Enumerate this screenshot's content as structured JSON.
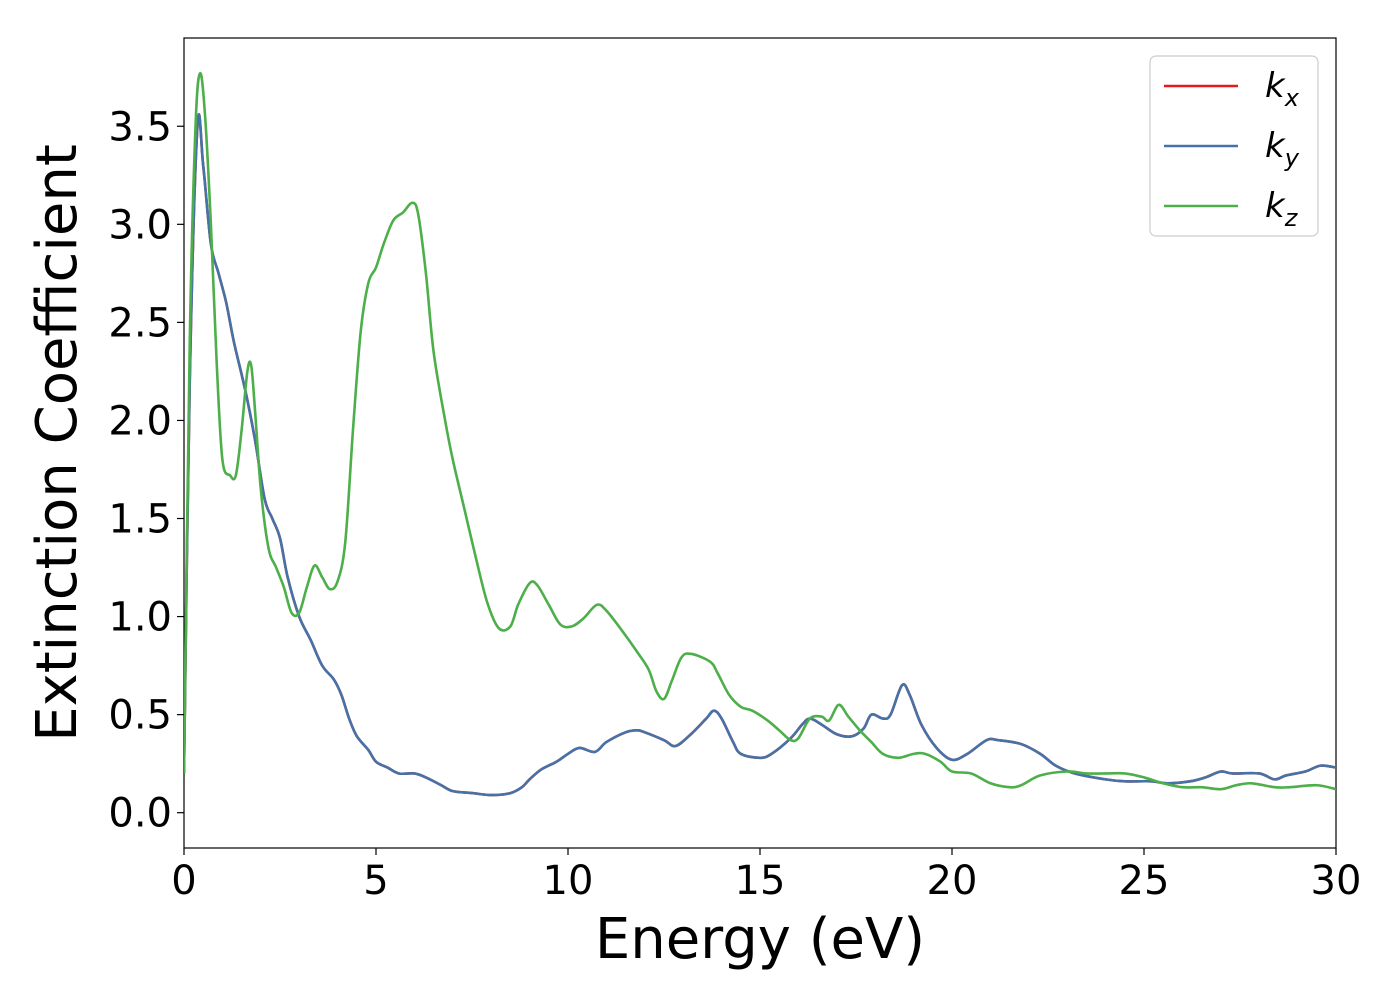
{
  "chart_data": {
    "type": "line",
    "title": "",
    "xlabel": "Energy (eV)",
    "ylabel": "Extinction Coefficient",
    "xlim": [
      0,
      30
    ],
    "ylim": [
      -0.18,
      3.95
    ],
    "xticks": [
      0,
      5,
      10,
      15,
      20,
      25,
      30
    ],
    "yticks": [
      0.0,
      0.5,
      1.0,
      1.5,
      2.0,
      2.5,
      3.0,
      3.5
    ],
    "xtick_labels": [
      "0",
      "5",
      "10",
      "15",
      "20",
      "25",
      "30"
    ],
    "ytick_labels": [
      "0.0",
      "0.5",
      "1.0",
      "1.5",
      "2.0",
      "2.5",
      "3.0",
      "3.5"
    ],
    "grid": false,
    "legend_position": "top-right",
    "series": [
      {
        "name": "k_x",
        "base": "k",
        "sub": "x",
        "color": "#e41a1c",
        "points": [
          [
            0,
            0.2
          ],
          [
            0.15,
            2.2
          ],
          [
            0.35,
            3.5
          ],
          [
            0.5,
            3.3
          ],
          [
            0.7,
            2.9
          ],
          [
            0.9,
            2.75
          ],
          [
            1.1,
            2.6
          ],
          [
            1.3,
            2.4
          ],
          [
            1.6,
            2.15
          ],
          [
            1.85,
            1.9
          ],
          [
            2.1,
            1.6
          ],
          [
            2.3,
            1.5
          ],
          [
            2.5,
            1.4
          ],
          [
            2.7,
            1.2
          ],
          [
            3.0,
            1.0
          ],
          [
            3.3,
            0.88
          ],
          [
            3.6,
            0.75
          ],
          [
            3.9,
            0.68
          ],
          [
            4.1,
            0.6
          ],
          [
            4.3,
            0.48
          ],
          [
            4.5,
            0.39
          ],
          [
            4.8,
            0.32
          ],
          [
            5.0,
            0.26
          ],
          [
            5.3,
            0.23
          ],
          [
            5.6,
            0.2
          ],
          [
            6.0,
            0.2
          ],
          [
            6.3,
            0.18
          ],
          [
            6.7,
            0.14
          ],
          [
            7.0,
            0.11
          ],
          [
            7.5,
            0.1
          ],
          [
            8.0,
            0.09
          ],
          [
            8.5,
            0.1
          ],
          [
            8.8,
            0.13
          ],
          [
            9.0,
            0.17
          ],
          [
            9.3,
            0.22
          ],
          [
            9.7,
            0.26
          ],
          [
            10.0,
            0.3
          ],
          [
            10.3,
            0.33
          ],
          [
            10.7,
            0.31
          ],
          [
            11.0,
            0.36
          ],
          [
            11.5,
            0.41
          ],
          [
            11.8,
            0.42
          ],
          [
            12.0,
            0.41
          ],
          [
            12.5,
            0.37
          ],
          [
            12.8,
            0.34
          ],
          [
            13.2,
            0.4
          ],
          [
            13.6,
            0.48
          ],
          [
            13.8,
            0.52
          ],
          [
            14.0,
            0.48
          ],
          [
            14.3,
            0.36
          ],
          [
            14.5,
            0.3
          ],
          [
            15.0,
            0.28
          ],
          [
            15.3,
            0.3
          ],
          [
            15.8,
            0.38
          ],
          [
            16.1,
            0.45
          ],
          [
            16.3,
            0.48
          ],
          [
            16.6,
            0.45
          ],
          [
            17.0,
            0.4
          ],
          [
            17.4,
            0.39
          ],
          [
            17.7,
            0.43
          ],
          [
            17.9,
            0.5
          ],
          [
            18.2,
            0.48
          ],
          [
            18.4,
            0.5
          ],
          [
            18.7,
            0.65
          ],
          [
            18.9,
            0.6
          ],
          [
            19.2,
            0.45
          ],
          [
            19.6,
            0.33
          ],
          [
            20.0,
            0.27
          ],
          [
            20.4,
            0.3
          ],
          [
            20.9,
            0.37
          ],
          [
            21.2,
            0.37
          ],
          [
            21.8,
            0.35
          ],
          [
            22.3,
            0.3
          ],
          [
            22.7,
            0.24
          ],
          [
            23.2,
            0.2
          ],
          [
            24.0,
            0.17
          ],
          [
            24.5,
            0.16
          ],
          [
            25.2,
            0.16
          ],
          [
            25.6,
            0.15
          ],
          [
            26.2,
            0.16
          ],
          [
            26.6,
            0.18
          ],
          [
            27.0,
            0.21
          ],
          [
            27.3,
            0.2
          ],
          [
            28.0,
            0.2
          ],
          [
            28.4,
            0.17
          ],
          [
            28.7,
            0.19
          ],
          [
            29.2,
            0.21
          ],
          [
            29.6,
            0.24
          ],
          [
            30.0,
            0.23
          ]
        ]
      },
      {
        "name": "k_y",
        "base": "k",
        "sub": "y",
        "color": "#4572a7",
        "points": [
          [
            0,
            0.2
          ],
          [
            0.15,
            2.2
          ],
          [
            0.35,
            3.5
          ],
          [
            0.5,
            3.3
          ],
          [
            0.7,
            2.9
          ],
          [
            0.9,
            2.75
          ],
          [
            1.1,
            2.6
          ],
          [
            1.3,
            2.4
          ],
          [
            1.6,
            2.15
          ],
          [
            1.85,
            1.9
          ],
          [
            2.1,
            1.6
          ],
          [
            2.3,
            1.5
          ],
          [
            2.5,
            1.4
          ],
          [
            2.7,
            1.2
          ],
          [
            3.0,
            1.0
          ],
          [
            3.3,
            0.88
          ],
          [
            3.6,
            0.75
          ],
          [
            3.9,
            0.68
          ],
          [
            4.1,
            0.6
          ],
          [
            4.3,
            0.48
          ],
          [
            4.5,
            0.39
          ],
          [
            4.8,
            0.32
          ],
          [
            5.0,
            0.26
          ],
          [
            5.3,
            0.23
          ],
          [
            5.6,
            0.2
          ],
          [
            6.0,
            0.2
          ],
          [
            6.3,
            0.18
          ],
          [
            6.7,
            0.14
          ],
          [
            7.0,
            0.11
          ],
          [
            7.5,
            0.1
          ],
          [
            8.0,
            0.09
          ],
          [
            8.5,
            0.1
          ],
          [
            8.8,
            0.13
          ],
          [
            9.0,
            0.17
          ],
          [
            9.3,
            0.22
          ],
          [
            9.7,
            0.26
          ],
          [
            10.0,
            0.3
          ],
          [
            10.3,
            0.33
          ],
          [
            10.7,
            0.31
          ],
          [
            11.0,
            0.36
          ],
          [
            11.5,
            0.41
          ],
          [
            11.8,
            0.42
          ],
          [
            12.0,
            0.41
          ],
          [
            12.5,
            0.37
          ],
          [
            12.8,
            0.34
          ],
          [
            13.2,
            0.4
          ],
          [
            13.6,
            0.48
          ],
          [
            13.8,
            0.52
          ],
          [
            14.0,
            0.48
          ],
          [
            14.3,
            0.36
          ],
          [
            14.5,
            0.3
          ],
          [
            15.0,
            0.28
          ],
          [
            15.3,
            0.3
          ],
          [
            15.8,
            0.38
          ],
          [
            16.1,
            0.45
          ],
          [
            16.3,
            0.48
          ],
          [
            16.6,
            0.45
          ],
          [
            17.0,
            0.4
          ],
          [
            17.4,
            0.39
          ],
          [
            17.7,
            0.43
          ],
          [
            17.9,
            0.5
          ],
          [
            18.2,
            0.48
          ],
          [
            18.4,
            0.5
          ],
          [
            18.7,
            0.65
          ],
          [
            18.9,
            0.6
          ],
          [
            19.2,
            0.45
          ],
          [
            19.6,
            0.33
          ],
          [
            20.0,
            0.27
          ],
          [
            20.4,
            0.3
          ],
          [
            20.9,
            0.37
          ],
          [
            21.2,
            0.37
          ],
          [
            21.8,
            0.35
          ],
          [
            22.3,
            0.3
          ],
          [
            22.7,
            0.24
          ],
          [
            23.2,
            0.2
          ],
          [
            24.0,
            0.17
          ],
          [
            24.5,
            0.16
          ],
          [
            25.2,
            0.16
          ],
          [
            25.6,
            0.15
          ],
          [
            26.2,
            0.16
          ],
          [
            26.6,
            0.18
          ],
          [
            27.0,
            0.21
          ],
          [
            27.3,
            0.2
          ],
          [
            28.0,
            0.2
          ],
          [
            28.4,
            0.17
          ],
          [
            28.7,
            0.19
          ],
          [
            29.2,
            0.21
          ],
          [
            29.6,
            0.24
          ],
          [
            30.0,
            0.23
          ]
        ]
      },
      {
        "name": "k_z",
        "base": "k",
        "sub": "z",
        "color": "#4daf4a",
        "points": [
          [
            0,
            0.2
          ],
          [
            0.15,
            2.4
          ],
          [
            0.3,
            3.5
          ],
          [
            0.42,
            3.77
          ],
          [
            0.55,
            3.55
          ],
          [
            0.7,
            3.0
          ],
          [
            0.85,
            2.3
          ],
          [
            1.0,
            1.8
          ],
          [
            1.2,
            1.72
          ],
          [
            1.35,
            1.72
          ],
          [
            1.5,
            1.95
          ],
          [
            1.65,
            2.25
          ],
          [
            1.75,
            2.28
          ],
          [
            1.85,
            2.05
          ],
          [
            2.0,
            1.65
          ],
          [
            2.2,
            1.35
          ],
          [
            2.4,
            1.25
          ],
          [
            2.6,
            1.15
          ],
          [
            2.8,
            1.02
          ],
          [
            3.0,
            1.02
          ],
          [
            3.2,
            1.15
          ],
          [
            3.4,
            1.26
          ],
          [
            3.6,
            1.2
          ],
          [
            3.8,
            1.14
          ],
          [
            4.0,
            1.18
          ],
          [
            4.2,
            1.38
          ],
          [
            4.4,
            1.95
          ],
          [
            4.6,
            2.45
          ],
          [
            4.8,
            2.7
          ],
          [
            5.0,
            2.78
          ],
          [
            5.2,
            2.9
          ],
          [
            5.45,
            3.02
          ],
          [
            5.7,
            3.06
          ],
          [
            5.95,
            3.11
          ],
          [
            6.1,
            3.05
          ],
          [
            6.3,
            2.75
          ],
          [
            6.5,
            2.35
          ],
          [
            6.8,
            2.0
          ],
          [
            7.0,
            1.8
          ],
          [
            7.3,
            1.55
          ],
          [
            7.6,
            1.3
          ],
          [
            7.9,
            1.07
          ],
          [
            8.2,
            0.94
          ],
          [
            8.5,
            0.95
          ],
          [
            8.7,
            1.06
          ],
          [
            9.0,
            1.17
          ],
          [
            9.2,
            1.16
          ],
          [
            9.5,
            1.06
          ],
          [
            9.8,
            0.96
          ],
          [
            10.1,
            0.95
          ],
          [
            10.4,
            0.99
          ],
          [
            10.75,
            1.06
          ],
          [
            11.0,
            1.03
          ],
          [
            11.4,
            0.93
          ],
          [
            11.8,
            0.82
          ],
          [
            12.1,
            0.73
          ],
          [
            12.3,
            0.62
          ],
          [
            12.5,
            0.58
          ],
          [
            12.7,
            0.67
          ],
          [
            12.95,
            0.79
          ],
          [
            13.2,
            0.81
          ],
          [
            13.7,
            0.77
          ],
          [
            13.9,
            0.71
          ],
          [
            14.2,
            0.6
          ],
          [
            14.5,
            0.54
          ],
          [
            14.8,
            0.52
          ],
          [
            15.2,
            0.47
          ],
          [
            15.5,
            0.42
          ],
          [
            15.8,
            0.37
          ],
          [
            16.0,
            0.38
          ],
          [
            16.3,
            0.48
          ],
          [
            16.6,
            0.49
          ],
          [
            16.8,
            0.47
          ],
          [
            17.05,
            0.55
          ],
          [
            17.3,
            0.49
          ],
          [
            17.6,
            0.42
          ],
          [
            17.9,
            0.36
          ],
          [
            18.2,
            0.3
          ],
          [
            18.6,
            0.28
          ],
          [
            19.0,
            0.3
          ],
          [
            19.3,
            0.3
          ],
          [
            19.7,
            0.26
          ],
          [
            20.0,
            0.21
          ],
          [
            20.5,
            0.2
          ],
          [
            21.0,
            0.15
          ],
          [
            21.5,
            0.13
          ],
          [
            21.8,
            0.14
          ],
          [
            22.3,
            0.19
          ],
          [
            23.0,
            0.21
          ],
          [
            23.5,
            0.2
          ],
          [
            24.0,
            0.2
          ],
          [
            24.5,
            0.2
          ],
          [
            25.0,
            0.18
          ],
          [
            25.5,
            0.15
          ],
          [
            26.0,
            0.13
          ],
          [
            26.5,
            0.13
          ],
          [
            27.0,
            0.12
          ],
          [
            27.4,
            0.14
          ],
          [
            27.8,
            0.15
          ],
          [
            28.4,
            0.13
          ],
          [
            28.8,
            0.13
          ],
          [
            29.5,
            0.14
          ],
          [
            30.0,
            0.12
          ]
        ]
      }
    ]
  }
}
